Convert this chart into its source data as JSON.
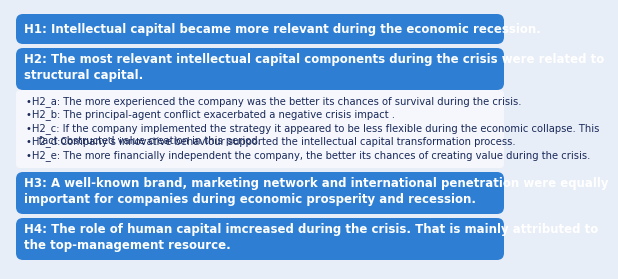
{
  "background_color": "#e8eef7",
  "box_color": "#2e7fd4",
  "box_color_dark": "#2060b0",
  "sub_bg_color": "#f5f7fc",
  "text_color_white": "#ffffff",
  "text_color_dark": "#1a2a5a",
  "h1_text": "H1: Intellectual capital became more relevant during the economic recession.",
  "h2_text": "H2: The most relevant intellectual capital components during the crisis were related to\nstructural capital.",
  "h2_bullets": [
    "•H2_a: The more experienced the company was the better its chances of survival during the crisis.",
    "•H2_b: The principal-agent conflict exacerbated a negative crisis impact .",
    "•H2_c: If the company implemented the strategy it appeared to be less flexible during the economic collapse. This\n    fact obstructed value creation in this period.",
    "•H2_d:Company’s innovative behaviour supported the intellectual capital transformation process.",
    "•H2_e: The more financially independent the company, the better its chances of creating value during the crisis."
  ],
  "h3_text": "H3: A well-known brand, marketing network and international penetration were equally\nimportant for companies during economic prosperity and recession.",
  "h4_text": "H4: The role of human capital imcreased during the crisis. That is mainly attributed to\nthe top-management resource.",
  "font_size_h": 8.5,
  "font_size_bullet": 7.2
}
